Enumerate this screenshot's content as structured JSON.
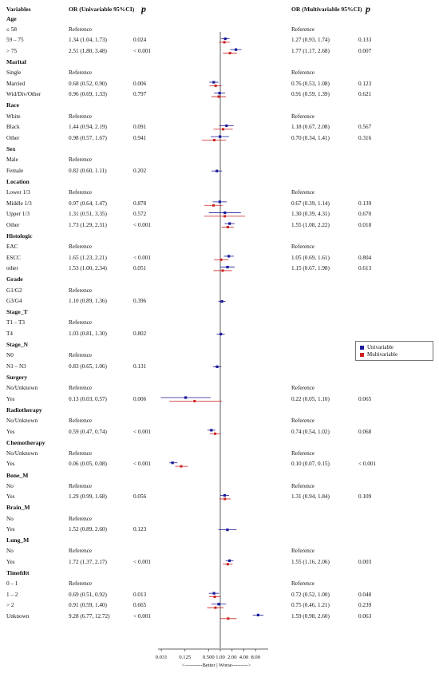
{
  "header": {
    "variables": "Variables",
    "uni_label": "OR (Univariable 95%CI)",
    "uni_p": "p",
    "multi_label": "OR (Multivariable 95%CI)",
    "multi_p": "p"
  },
  "legend": {
    "items": [
      {
        "label": "Univariable",
        "color": "#1a1a99"
      },
      {
        "label": "Multivariable",
        "color": "#cc2222"
      }
    ]
  },
  "chart_data": {
    "type": "forest",
    "x_scale": "log2",
    "x_ticks": [
      "0.031",
      "0.125",
      "0.500",
      "1.00",
      "2.00",
      "4.00",
      "8.00"
    ],
    "x_tick_values": [
      0.031,
      0.125,
      0.5,
      1,
      2,
      4,
      8
    ],
    "xlim": [
      0.031,
      8
    ],
    "reference_line": 1,
    "axis_caption": "<----------Better | Worse--------->",
    "colors": {
      "univariable": "#1a1a99",
      "multivariable": "#cc2222"
    },
    "rows": [
      {
        "kind": "group",
        "label": "Age"
      },
      {
        "kind": "level",
        "label": "≤ 58",
        "uni": "Reference",
        "multi": "Reference"
      },
      {
        "kind": "level",
        "label": "59 – 75",
        "uni": "1.34 (1.04, 1.73)",
        "uni_p": "0.024",
        "multi": "1.27 (0.93, 1.74)",
        "multi_p": "0.133",
        "u": [
          1.34,
          1.04,
          1.73
        ],
        "m": [
          1.27,
          0.93,
          1.74
        ]
      },
      {
        "kind": "level",
        "label": "> 75",
        "uni": "2.51 (1.80, 3.48)",
        "uni_p": "< 0.001",
        "multi": "1.77 (1.17, 2.68)",
        "multi_p": "0.007",
        "u": [
          2.51,
          1.8,
          3.48
        ],
        "m": [
          1.77,
          1.17,
          2.68
        ]
      },
      {
        "kind": "group",
        "label": "Marital"
      },
      {
        "kind": "level",
        "label": "Single",
        "uni": "Reference",
        "multi": "Reference"
      },
      {
        "kind": "level",
        "label": "Married",
        "uni": "0.68 (0.52, 0.90)",
        "uni_p": "0.006",
        "multi": "0.76 (0.53, 1.08)",
        "multi_p": "0.123",
        "u": [
          0.68,
          0.52,
          0.9
        ],
        "m": [
          0.76,
          0.53,
          1.08
        ]
      },
      {
        "kind": "level",
        "label": "Wid/Div/Other",
        "uni": "0.96 (0.69, 1.33)",
        "uni_p": "0.797",
        "multi": "0.91 (0.59, 1.39)",
        "multi_p": "0.621",
        "u": [
          0.96,
          0.69,
          1.33
        ],
        "m": [
          0.91,
          0.59,
          1.39
        ]
      },
      {
        "kind": "group",
        "label": "Race"
      },
      {
        "kind": "level",
        "label": "White",
        "uni": "Reference",
        "multi": "Reference"
      },
      {
        "kind": "level",
        "label": "Black",
        "uni": "1.44 (0.94, 2.19)",
        "uni_p": "0.091",
        "multi": "1.18 (0.67, 2.08)",
        "multi_p": "0.567",
        "u": [
          1.44,
          0.94,
          2.19
        ],
        "m": [
          1.18,
          0.67,
          2.08
        ]
      },
      {
        "kind": "level",
        "label": "Other",
        "uni": "0.98 (0.57, 1.67)",
        "uni_p": "0.941",
        "multi": "0.70 (0.34, 1.41)",
        "multi_p": "0.316",
        "u": [
          0.98,
          0.57,
          1.67
        ],
        "m": [
          0.7,
          0.34,
          1.41
        ]
      },
      {
        "kind": "group",
        "label": "Sex"
      },
      {
        "kind": "level",
        "label": "Male",
        "uni": "Reference",
        "multi": ""
      },
      {
        "kind": "level",
        "label": "Female",
        "uni": "0.82 (0.60, 1.11)",
        "uni_p": "0.202",
        "multi": "",
        "multi_p": "",
        "u": [
          0.82,
          0.6,
          1.11
        ]
      },
      {
        "kind": "group",
        "label": "Location"
      },
      {
        "kind": "level",
        "label": "Lower 1/3",
        "uni": "Reference",
        "multi": "Reference"
      },
      {
        "kind": "level",
        "label": "Middle 1/3",
        "uni": "0.97 (0.64, 1.47)",
        "uni_p": "0.878",
        "multi": "0.67 (0.39, 1.14)",
        "multi_p": "0.139",
        "u": [
          0.97,
          0.64,
          1.47
        ],
        "m": [
          0.67,
          0.39,
          1.14
        ]
      },
      {
        "kind": "level",
        "label": "Upper 1/3",
        "uni": "1.31 (0.51, 3.35)",
        "uni_p": "0.572",
        "multi": "1.30 (0.39, 4.31)",
        "multi_p": "0.670",
        "u": [
          1.31,
          0.51,
          3.35
        ],
        "m": [
          1.3,
          0.39,
          4.31
        ]
      },
      {
        "kind": "level",
        "label": "Other",
        "uni": "1.73 (1.29, 2.31)",
        "uni_p": "< 0.001",
        "multi": "1.55 (1.08, 2.22)",
        "multi_p": "0.018",
        "u": [
          1.73,
          1.29,
          2.31
        ],
        "m": [
          1.55,
          1.08,
          2.22
        ]
      },
      {
        "kind": "group",
        "label": "Histologic"
      },
      {
        "kind": "level",
        "label": "EAC",
        "uni": "Reference",
        "multi": "Reference"
      },
      {
        "kind": "level",
        "label": "ESCC",
        "uni": "1.65 (1.23, 2.21)",
        "uni_p": "< 0.001",
        "multi": "1.05 (0.69, 1.61)",
        "multi_p": "0.804",
        "u": [
          1.65,
          1.23,
          2.21
        ],
        "m": [
          1.05,
          0.69,
          1.61
        ]
      },
      {
        "kind": "level",
        "label": "other",
        "uni": "1.53 (1.00, 2.34)",
        "uni_p": "0.051",
        "multi": "1.15 (0.67, 1.98)",
        "multi_p": "0.613",
        "u": [
          1.53,
          1.0,
          2.34
        ],
        "m": [
          1.15,
          0.67,
          1.98
        ]
      },
      {
        "kind": "group",
        "label": "Grade"
      },
      {
        "kind": "level",
        "label": "G1/G2",
        "uni": "Reference",
        "multi": ""
      },
      {
        "kind": "level",
        "label": "G3/G4",
        "uni": "1.10 (0.89, 1.36)",
        "uni_p": "0.396",
        "multi": "",
        "multi_p": "",
        "u": [
          1.1,
          0.89,
          1.36
        ]
      },
      {
        "kind": "group",
        "label": "Stage_T"
      },
      {
        "kind": "level",
        "label": "T1 – T3",
        "uni": "Reference",
        "multi": ""
      },
      {
        "kind": "level",
        "label": "T4",
        "uni": "1.03 (0.81, 1.30)",
        "uni_p": "0.802",
        "multi": "",
        "multi_p": "",
        "u": [
          1.03,
          0.81,
          1.3
        ]
      },
      {
        "kind": "group",
        "label": "Stage_N"
      },
      {
        "kind": "level",
        "label": "N0",
        "uni": "Reference",
        "multi": ""
      },
      {
        "kind": "level",
        "label": "N1 – N3",
        "uni": "0.83 (0.65, 1.06)",
        "uni_p": "0.131",
        "multi": "",
        "multi_p": "",
        "u": [
          0.83,
          0.65,
          1.06
        ]
      },
      {
        "kind": "group",
        "label": "Surgery"
      },
      {
        "kind": "level",
        "label": "No/Unknown",
        "uni": "Reference",
        "multi": "Reference"
      },
      {
        "kind": "level",
        "label": "Yes",
        "uni": "0.13 (0.03, 0.57)",
        "uni_p": "0.006",
        "multi": "0.22 (0.05, 1.10)",
        "multi_p": "0.065",
        "u": [
          0.13,
          0.03,
          0.57
        ],
        "m": [
          0.22,
          0.05,
          1.1
        ]
      },
      {
        "kind": "group",
        "label": "Radiotherapy"
      },
      {
        "kind": "level",
        "label": "No/Unknown",
        "uni": "Reference",
        "multi": "Reference"
      },
      {
        "kind": "level",
        "label": "Yes",
        "uni": "0.59 (0.47, 0.74)",
        "uni_p": "< 0.001",
        "multi": "0.74 (0.54, 1.02)",
        "multi_p": "0.068",
        "u": [
          0.59,
          0.47,
          0.74
        ],
        "m": [
          0.74,
          0.54,
          1.02
        ]
      },
      {
        "kind": "group",
        "label": "Chemotherapy"
      },
      {
        "kind": "level",
        "label": "No/Unknown",
        "uni": "Reference",
        "multi": "Reference"
      },
      {
        "kind": "level",
        "label": "Yes",
        "uni": "0.06 (0.05, 0.08)",
        "uni_p": "< 0.001",
        "multi": "0.10 (0.07, 0.15)",
        "multi_p": "< 0.001",
        "u": [
          0.06,
          0.05,
          0.08
        ],
        "m": [
          0.1,
          0.07,
          0.15
        ]
      },
      {
        "kind": "group",
        "label": "Bone_M"
      },
      {
        "kind": "level",
        "label": "No",
        "uni": "Reference",
        "multi": "Reference"
      },
      {
        "kind": "level",
        "label": "Yes",
        "uni": "1.29 (0.99, 1.68)",
        "uni_p": "0.056",
        "multi": "1.31 (0.94, 1.84)",
        "multi_p": "0.109",
        "u": [
          1.29,
          0.99,
          1.68
        ],
        "m": [
          1.31,
          0.94,
          1.84
        ]
      },
      {
        "kind": "group",
        "label": "Brain_M"
      },
      {
        "kind": "level",
        "label": "No",
        "uni": "Reference",
        "multi": ""
      },
      {
        "kind": "level",
        "label": "Yes",
        "uni": "1.52 (0.89, 2.60)",
        "uni_p": "0.123",
        "multi": "",
        "multi_p": "",
        "u": [
          1.52,
          0.89,
          2.6
        ]
      },
      {
        "kind": "group",
        "label": "Lung_M"
      },
      {
        "kind": "level",
        "label": "No",
        "uni": "Reference",
        "multi": "Reference"
      },
      {
        "kind": "level",
        "label": "Yes",
        "uni": "1.72 (1.37, 2.17)",
        "uni_p": "< 0.001",
        "multi": "1.55 (1.16, 2.06)",
        "multi_p": "0.003",
        "u": [
          1.72,
          1.37,
          2.17
        ],
        "m": [
          1.55,
          1.16,
          2.06
        ]
      },
      {
        "kind": "group",
        "label": "Timefdtt"
      },
      {
        "kind": "level",
        "label": "0 – 1",
        "uni": "Reference",
        "multi": "Reference"
      },
      {
        "kind": "level",
        "label": "1 – 2",
        "uni": "0.69 (0.51, 0.92)",
        "uni_p": "0.013",
        "multi": "0.72 (0.52, 1.00)",
        "multi_p": "0.048",
        "u": [
          0.69,
          0.51,
          0.92
        ],
        "m": [
          0.72,
          0.52,
          1.0
        ]
      },
      {
        "kind": "level",
        "label": "> 2",
        "uni": "0.91 (0.59, 1.40)",
        "uni_p": "0.665",
        "multi": "0.75 (0.46, 1.21)",
        "multi_p": "0.239",
        "u": [
          0.91,
          0.59,
          1.4
        ],
        "m": [
          0.75,
          0.46,
          1.21
        ]
      },
      {
        "kind": "level",
        "label": "Unknown",
        "uni": "9.28 (6.77, 12.72)",
        "uni_p": "< 0.001",
        "multi": "1.59 (0.98, 2.60)",
        "multi_p": "0.063",
        "u": [
          9.28,
          6.77,
          12.72
        ],
        "m": [
          1.59,
          0.98,
          2.6
        ]
      }
    ]
  }
}
